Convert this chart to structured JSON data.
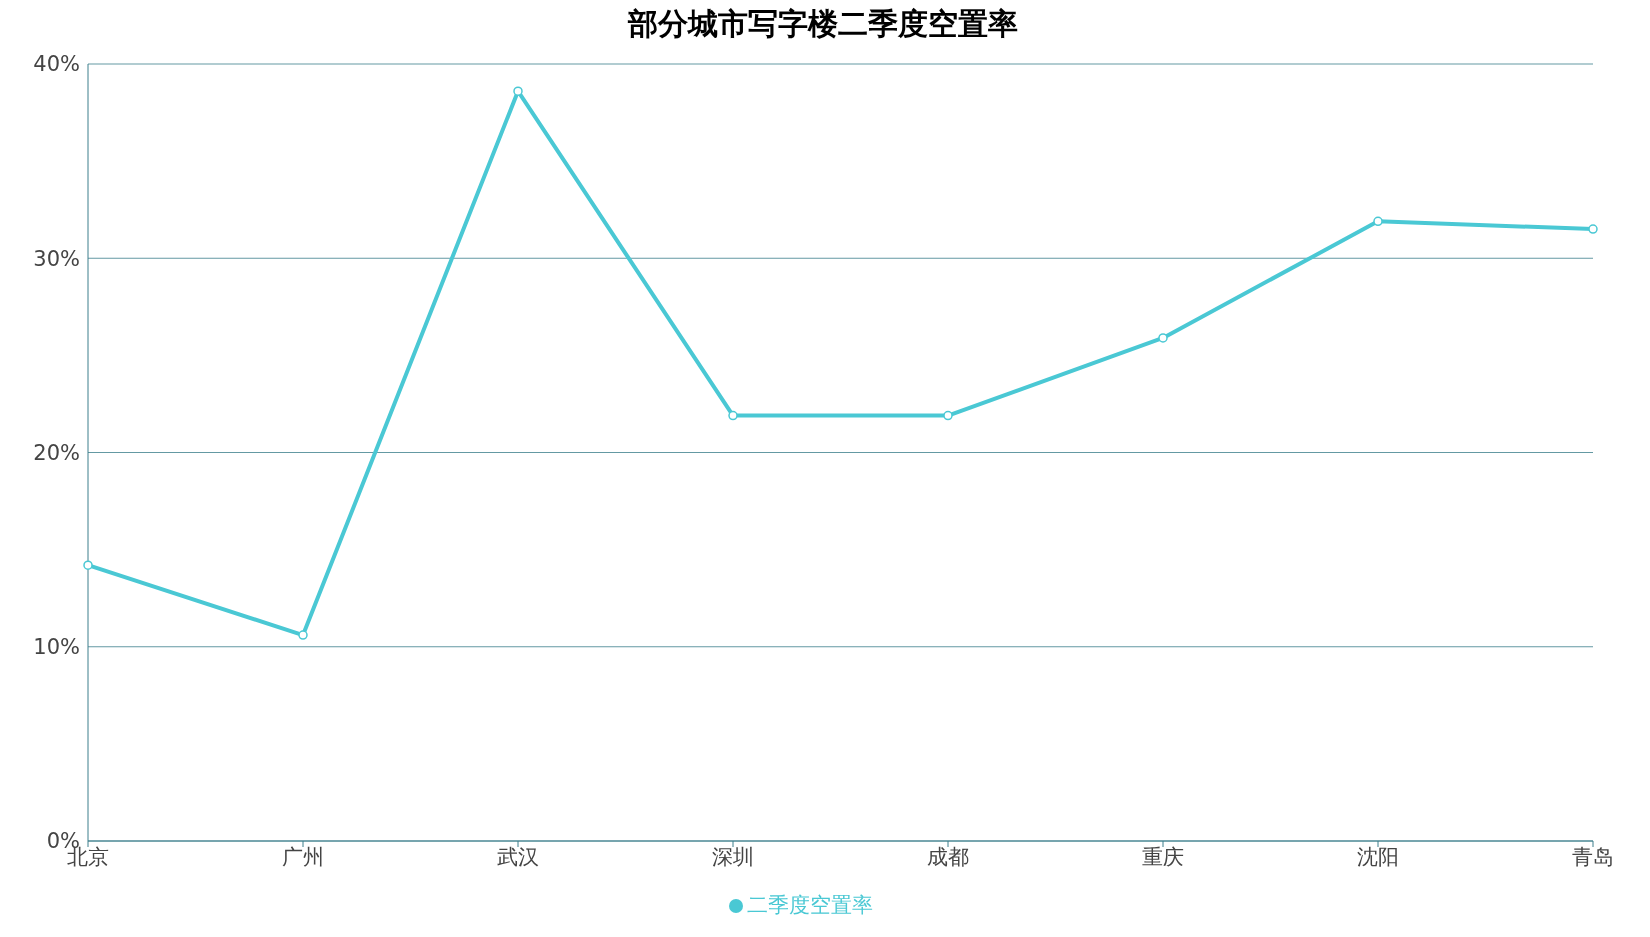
{
  "chart_data": {
    "type": "line",
    "title": "部分城市写字楼二季度空置率",
    "categories": [
      "北京",
      "广州",
      "武汉",
      "深圳",
      "成都",
      "重庆",
      "沈阳",
      "青岛"
    ],
    "series": [
      {
        "name": "二季度空置率",
        "color": "#4ac8d4",
        "values": [
          14.2,
          10.6,
          38.6,
          21.9,
          21.9,
          25.9,
          31.9,
          31.5
        ]
      }
    ],
    "ylim": [
      0,
      40
    ],
    "yticks": [
      {
        "value": 0,
        "label": "0%"
      },
      {
        "value": 10,
        "label": "10%"
      },
      {
        "value": 20,
        "label": "20%"
      },
      {
        "value": 30,
        "label": "30%"
      },
      {
        "value": 40,
        "label": "40%"
      }
    ],
    "grid": "y",
    "legend": "bottom",
    "marker": "circle",
    "line_style": "solid"
  }
}
